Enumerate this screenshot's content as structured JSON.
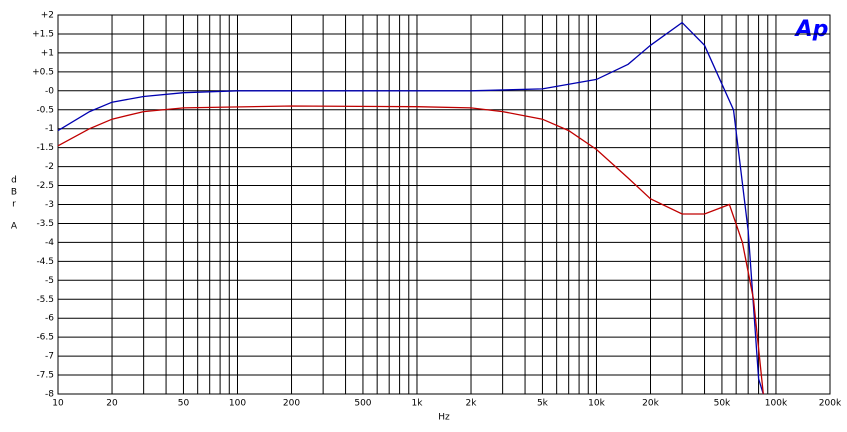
{
  "chart_data": {
    "type": "line",
    "logo": "Ap",
    "x_label": "Hz",
    "y_label": [
      "d",
      "B",
      "r",
      "A"
    ],
    "xlim": [
      10,
      200000
    ],
    "ylim": [
      -8,
      2
    ],
    "xscale": "log",
    "xticks": [
      10,
      20,
      50,
      100,
      200,
      500,
      {
        "value": 1000,
        "label": "1k"
      },
      {
        "value": 2000,
        "label": "2k"
      },
      {
        "value": 5000,
        "label": "5k"
      },
      {
        "value": 10000,
        "label": "10k"
      },
      {
        "value": 20000,
        "label": "20k"
      },
      {
        "value": 50000,
        "label": "50k"
      },
      {
        "value": 100000,
        "label": "100k"
      },
      {
        "value": 200000,
        "label": "200k"
      }
    ],
    "xminor": [
      30,
      40,
      60,
      70,
      80,
      90,
      300,
      400,
      600,
      700,
      800,
      900,
      3000,
      4000,
      6000,
      7000,
      8000,
      9000,
      30000,
      40000,
      60000,
      70000,
      80000,
      90000
    ],
    "yticks": [
      {
        "value": 2,
        "label": "+2"
      },
      {
        "value": 1.5,
        "label": "+1.5"
      },
      {
        "value": 1,
        "label": "+1"
      },
      {
        "value": 0.5,
        "label": "+0.5"
      },
      {
        "value": 0,
        "label": "-0"
      },
      -0.5,
      -1,
      -1.5,
      -2,
      -2.5,
      -3,
      -3.5,
      -4,
      -4.5,
      -5,
      -5.5,
      -6,
      -6.5,
      -7,
      -7.5,
      -8
    ],
    "grid": true,
    "series": [
      {
        "color": "#0000b0",
        "x": [
          10,
          15,
          20,
          30,
          50,
          100,
          1000,
          2000,
          5000,
          10000,
          15000,
          20000,
          30000,
          40000,
          58000,
          70000,
          80000,
          85000
        ],
        "values": [
          -1.05,
          -0.55,
          -0.3,
          -0.15,
          -0.05,
          0,
          0,
          0,
          0.05,
          0.3,
          0.7,
          1.2,
          1.8,
          1.2,
          -0.5,
          -3.7,
          -7.6,
          -8
        ]
      },
      {
        "color": "#c00000",
        "x": [
          10,
          15,
          20,
          30,
          50,
          200,
          1000,
          2000,
          3000,
          5000,
          7000,
          10000,
          15000,
          20000,
          30000,
          40000,
          55000,
          65000,
          75000,
          85000
        ],
        "values": [
          -1.45,
          -1.0,
          -0.75,
          -0.55,
          -0.45,
          -0.4,
          -0.42,
          -0.45,
          -0.55,
          -0.75,
          -1.05,
          -1.55,
          -2.3,
          -2.85,
          -3.25,
          -3.25,
          -3.0,
          -4.0,
          -5.5,
          -8
        ]
      }
    ]
  }
}
